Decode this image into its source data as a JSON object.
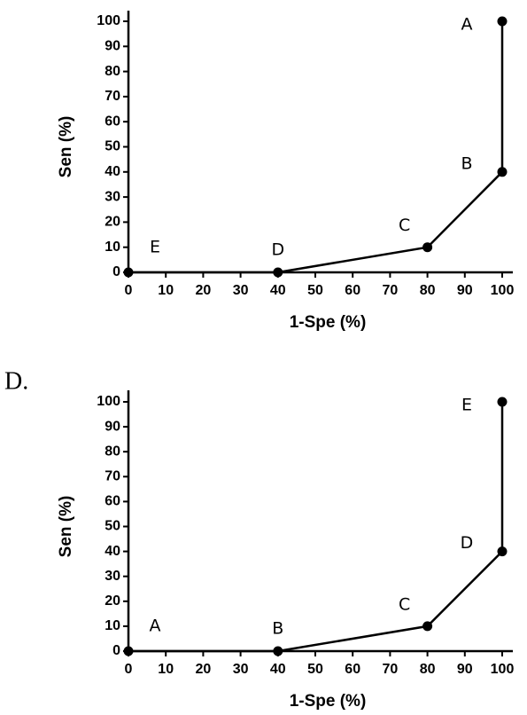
{
  "chart_data": [
    {
      "type": "line",
      "x_label": "1-Spe (%)",
      "y_label": "Sen (%)",
      "x": [
        0,
        40,
        80,
        100,
        100
      ],
      "values": [
        0,
        0,
        10,
        40,
        100
      ],
      "point_labels": [
        "E",
        "D",
        "C",
        "B",
        "A"
      ],
      "color": "#000000",
      "xlim": [
        0,
        100
      ],
      "ylim": [
        0,
        100
      ],
      "xticks": [
        0,
        10,
        20,
        30,
        40,
        50,
        60,
        70,
        80,
        90,
        100
      ],
      "yticks": [
        0,
        10,
        20,
        30,
        40,
        50,
        60,
        70,
        80,
        90,
        100
      ]
    },
    {
      "type": "line",
      "panel_label": "D.",
      "x_label": "1-Spe (%)",
      "y_label": "Sen (%)",
      "x": [
        0,
        40,
        80,
        100,
        100
      ],
      "values": [
        0,
        0,
        10,
        40,
        100
      ],
      "point_labels": [
        "A",
        "B",
        "C",
        "D",
        "E"
      ],
      "color": "#000000",
      "xlim": [
        0,
        100
      ],
      "ylim": [
        0,
        100
      ],
      "xticks": [
        0,
        10,
        20,
        30,
        40,
        50,
        60,
        70,
        80,
        90,
        100
      ],
      "yticks": [
        0,
        10,
        20,
        30,
        40,
        50,
        60,
        70,
        80,
        90,
        100
      ]
    }
  ]
}
